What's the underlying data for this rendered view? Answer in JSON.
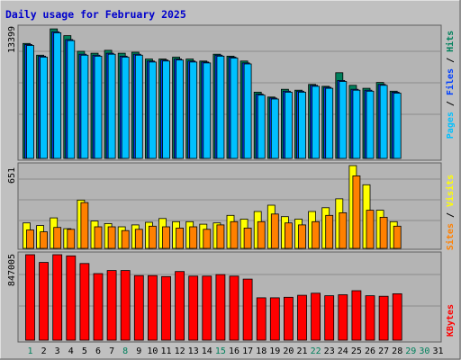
{
  "title": "Daily usage for February 2025",
  "colors": {
    "frame_bg": "#c0c0c0",
    "panel_bg": "#b4b4b4",
    "grid": "#8c8c8c",
    "title": "#0000cc",
    "hits": "#00805c",
    "files": "#0040ff",
    "pages": "#00c0ff",
    "visits": "#ffff00",
    "sites": "#ff8000",
    "kbytes": "#ff0000",
    "weekday_label": "#000000",
    "weekend_label": "#00805c"
  },
  "chart_data": [
    {
      "type": "bar",
      "panel": "top",
      "max_label": "13399",
      "ymax": 13399,
      "legend": {
        "pages": "Pages",
        "sep1": " / ",
        "files": "Files",
        "sep2": " / ",
        "hits": "Hits"
      },
      "series": [
        {
          "name": "Hits",
          "values": [
            11800,
            10600,
            13300,
            12600,
            11000,
            10800,
            11100,
            10800,
            10900,
            10200,
            10200,
            10400,
            10200,
            10000,
            10700,
            10500,
            10000,
            6800,
            6300,
            7100,
            7000,
            7600,
            7400,
            8800,
            7500,
            7200,
            7800,
            6900
          ]
        },
        {
          "name": "Files",
          "values": [
            11700,
            10500,
            13000,
            12200,
            10700,
            10600,
            10800,
            10500,
            10700,
            10000,
            10100,
            10200,
            10000,
            9900,
            10600,
            10400,
            9800,
            6600,
            6200,
            6900,
            6900,
            7500,
            7300,
            8000,
            7100,
            7000,
            7600,
            6800
          ]
        },
        {
          "name": "Pages",
          "values": [
            11600,
            10400,
            12900,
            12100,
            10600,
            10500,
            10700,
            10400,
            10600,
            9900,
            10000,
            10100,
            9900,
            9800,
            10500,
            10300,
            9700,
            6500,
            6100,
            6800,
            6800,
            7400,
            7200,
            7900,
            7000,
            6900,
            7500,
            6700
          ]
        }
      ]
    },
    {
      "type": "bar",
      "panel": "middle",
      "max_label": "651",
      "ymax": 651,
      "legend": {
        "sites": "Sites",
        "sep": " / ",
        "visits": "Visits"
      },
      "series": [
        {
          "name": "Visits",
          "values": [
            200,
            180,
            240,
            155,
            380,
            215,
            195,
            170,
            185,
            205,
            235,
            210,
            210,
            190,
            200,
            260,
            230,
            290,
            340,
            250,
            230,
            290,
            320,
            390,
            651,
            500,
            300,
            210
          ]
        },
        {
          "name": "Sites",
          "values": [
            145,
            130,
            165,
            150,
            360,
            170,
            170,
            140,
            150,
            175,
            170,
            160,
            170,
            150,
            185,
            210,
            160,
            210,
            270,
            200,
            185,
            210,
            260,
            280,
            570,
            300,
            245,
            175
          ]
        }
      ]
    },
    {
      "type": "bar",
      "panel": "bottom",
      "max_label": "847005",
      "ymax": 847005,
      "legend": {
        "kbytes": "KBytes"
      },
      "series": [
        {
          "name": "KBytes",
          "values": [
            847005,
            770000,
            847005,
            835000,
            760000,
            660000,
            690000,
            690000,
            640000,
            640000,
            630000,
            680000,
            635000,
            635000,
            650000,
            635000,
            605000,
            420000,
            420000,
            425000,
            445000,
            465000,
            440000,
            450000,
            490000,
            440000,
            435000,
            460000
          ]
        }
      ]
    }
  ],
  "days": [
    "1",
    "2",
    "3",
    "4",
    "5",
    "6",
    "7",
    "8",
    "9",
    "10",
    "11",
    "12",
    "13",
    "14",
    "15",
    "16",
    "17",
    "18",
    "19",
    "20",
    "21",
    "22",
    "23",
    "24",
    "25",
    "26",
    "27",
    "28",
    "29",
    "30",
    "31"
  ],
  "weekend_days": [
    1,
    8,
    15,
    22,
    29,
    30
  ]
}
